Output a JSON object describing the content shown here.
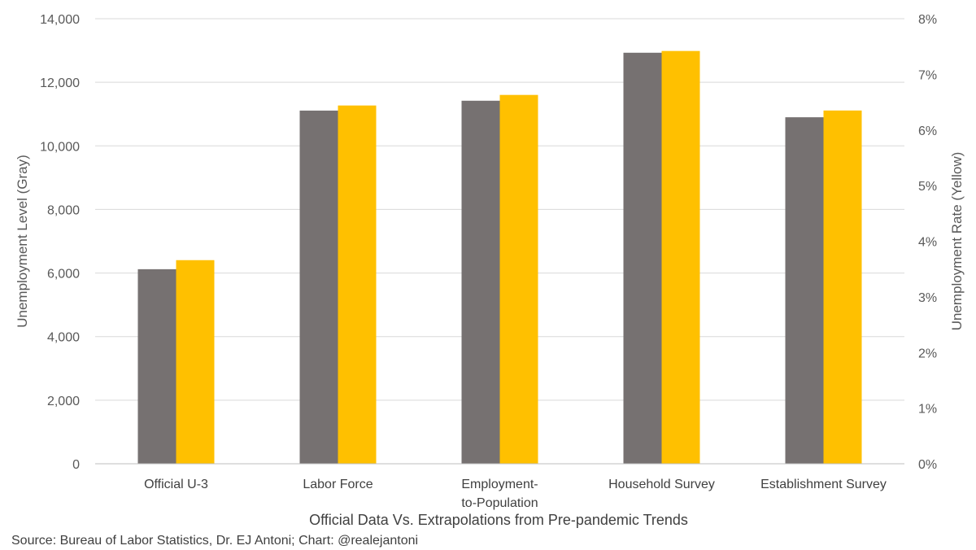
{
  "chart_data": {
    "type": "bar",
    "title": "",
    "xlabel": "Official Data Vs. Extrapolations from Pre-pandemic Trends",
    "ylabel": "Unemployment Level (Gray)",
    "y2label": "Unemployment Rate (Yellow)",
    "categories": [
      [
        "Official U-3"
      ],
      [
        "Labor Force"
      ],
      [
        "Employment-",
        "to-Population"
      ],
      [
        "Household Survey"
      ],
      [
        "Establishment Survey"
      ]
    ],
    "ylim": [
      0,
      14000
    ],
    "yticks": [
      0,
      2000,
      4000,
      6000,
      8000,
      10000,
      12000,
      14000
    ],
    "ytick_labels": [
      "0",
      "2,000",
      "4,000",
      "6,000",
      "8,000",
      "10,000",
      "12,000",
      "14,000"
    ],
    "y2lim": [
      0,
      8
    ],
    "y2ticks": [
      0,
      1,
      2,
      3,
      4,
      5,
      6,
      7,
      8
    ],
    "y2tick_labels": [
      "0%",
      "1%",
      "2%",
      "3%",
      "4%",
      "5%",
      "6%",
      "7%",
      "8%"
    ],
    "grid": true,
    "series": [
      {
        "name": "Unemployment Level",
        "axis": "left",
        "color": "#767171",
        "values": [
          6120,
          11110,
          11420,
          12930,
          10900
        ]
      },
      {
        "name": "Unemployment Rate",
        "axis": "right",
        "color": "#FFC000",
        "values": [
          3.66,
          6.44,
          6.63,
          7.42,
          6.35
        ]
      }
    ],
    "source": "Source: Bureau of Labor Statistics, Dr. EJ Antoni; Chart: @realejantoni"
  }
}
